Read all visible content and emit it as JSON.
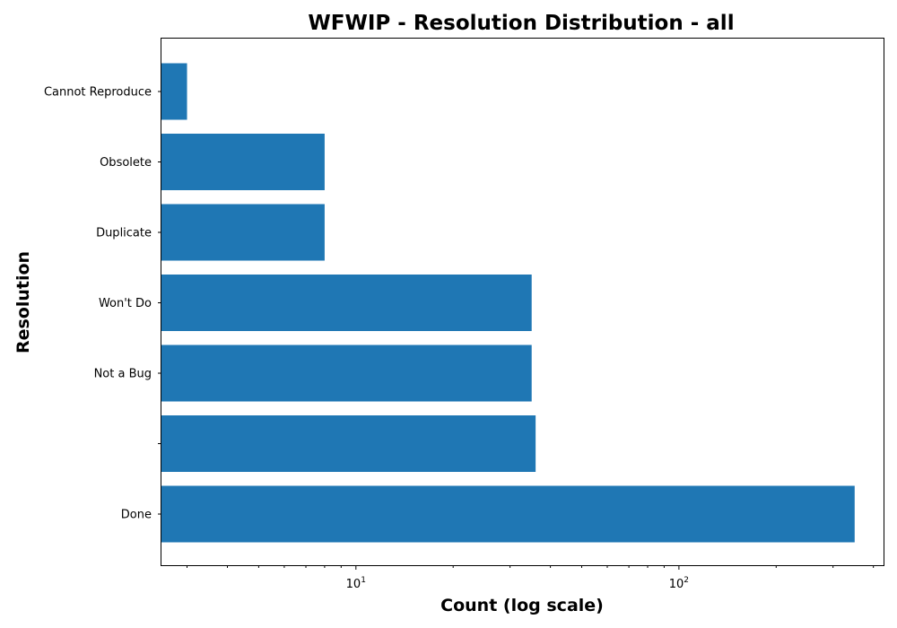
{
  "chart_data": {
    "type": "bar",
    "orientation": "horizontal",
    "title": "WFWIP - Resolution Distribution - all",
    "xlabel": "Count (log scale)",
    "ylabel": "Resolution",
    "x_scale": "log",
    "xlim": [
      2.5,
      430
    ],
    "x_major_ticks": [
      {
        "value": 10,
        "base": "10",
        "exponent": "1"
      },
      {
        "value": 100,
        "base": "10",
        "exponent": "2"
      }
    ],
    "categories": [
      "Done",
      "",
      "Not a Bug",
      "Won't Do",
      "Duplicate",
      "Obsolete",
      "Cannot Reproduce"
    ],
    "values": [
      350,
      36,
      35,
      35,
      8,
      8,
      3
    ],
    "bar_color": "#1f77b4",
    "grid": false,
    "legend": "none"
  }
}
